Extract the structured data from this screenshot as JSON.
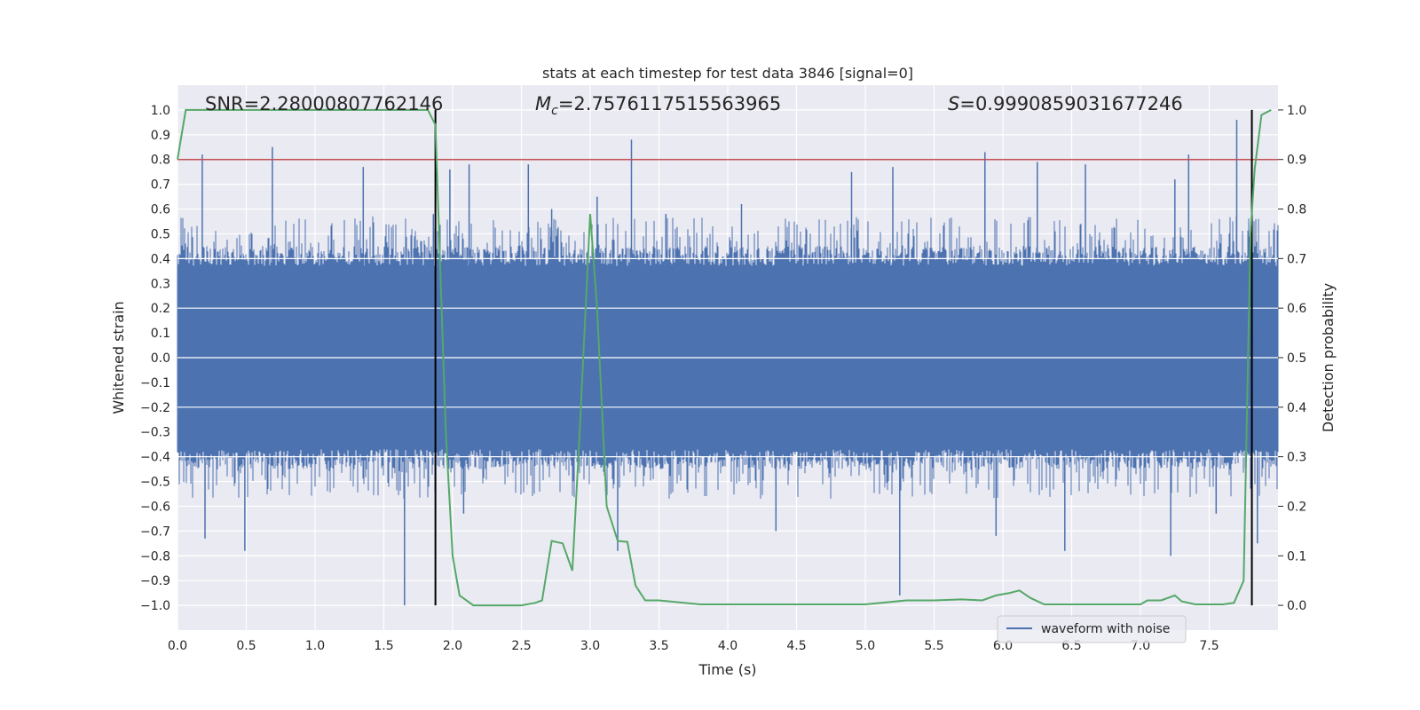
{
  "chart_data": {
    "type": "line",
    "title": "stats at each timestep for test data 3846 [signal=0]",
    "xlabel": "Time (s)",
    "ylabel": "Whitened strain",
    "y2label": "Detection probability",
    "xlim": [
      0.0,
      8.0
    ],
    "ylim": [
      -1.1,
      1.1
    ],
    "y2lim": [
      -0.05,
      1.05
    ],
    "xticks": [
      "0.0",
      "0.5",
      "1.0",
      "1.5",
      "2.0",
      "2.5",
      "3.0",
      "3.5",
      "4.0",
      "4.5",
      "5.0",
      "5.5",
      "6.0",
      "6.5",
      "7.0",
      "7.5"
    ],
    "yticks": [
      "1.0",
      "0.9",
      "0.8",
      "0.7",
      "0.6",
      "0.5",
      "0.4",
      "0.3",
      "0.2",
      "0.1",
      "0.0",
      "-0.1",
      "-0.2",
      "-0.3",
      "-0.4",
      "-0.5",
      "-0.6",
      "-0.7",
      "-0.8",
      "-0.9",
      "-1.0"
    ],
    "y2ticks": [
      "1.0",
      "0.9",
      "0.8",
      "0.7",
      "0.6",
      "0.5",
      "0.4",
      "0.3",
      "0.2",
      "0.1",
      "0.0"
    ],
    "annotations": {
      "snr": "SNR=2.28000807762146",
      "mc": "=2.7576117515563965",
      "mc_symbol": "M",
      "mc_sub": "c",
      "s": "=0.9990859031677246",
      "s_symbol": "S"
    },
    "legend": {
      "entry": "waveform with noise",
      "placement": "lower-right"
    },
    "threshold": 0.9,
    "vlines": [
      1.875,
      7.81
    ],
    "grid": true,
    "colors": {
      "waveform": "#4c72b0",
      "probability": "#55a868",
      "threshold": "#c44e52",
      "vline": "#000000",
      "plot_bg": "#eaeaf2",
      "grid": "#ffffff"
    },
    "waveform": {
      "series_name": "waveform with noise",
      "core_amplitude": 0.37,
      "spikes_up": [
        [
          0.18,
          0.82
        ],
        [
          0.69,
          0.85
        ],
        [
          1.35,
          0.77
        ],
        [
          1.86,
          0.58
        ],
        [
          1.98,
          0.76
        ],
        [
          2.12,
          0.78
        ],
        [
          2.55,
          0.78
        ],
        [
          2.72,
          0.6
        ],
        [
          3.05,
          0.65
        ],
        [
          3.3,
          0.88
        ],
        [
          3.55,
          0.58
        ],
        [
          4.1,
          0.62
        ],
        [
          4.9,
          0.75
        ],
        [
          5.2,
          0.77
        ],
        [
          5.87,
          0.83
        ],
        [
          6.25,
          0.79
        ],
        [
          6.6,
          0.78
        ],
        [
          7.25,
          0.72
        ],
        [
          7.35,
          0.82
        ],
        [
          7.7,
          0.96
        ]
      ],
      "spikes_down": [
        [
          0.2,
          -0.73
        ],
        [
          0.49,
          -0.78
        ],
        [
          1.65,
          -1.0
        ],
        [
          2.08,
          -0.63
        ],
        [
          3.2,
          -0.78
        ],
        [
          4.35,
          -0.7
        ],
        [
          5.25,
          -0.96
        ],
        [
          5.95,
          -0.72
        ],
        [
          6.45,
          -0.78
        ],
        [
          7.22,
          -0.8
        ],
        [
          7.55,
          -0.63
        ],
        [
          7.85,
          -0.75
        ]
      ]
    },
    "detection_probability": {
      "x": [
        0.0,
        0.06,
        1.5,
        1.82,
        1.875,
        1.95,
        2.0,
        2.05,
        2.15,
        2.3,
        2.5,
        2.6,
        2.65,
        2.72,
        2.8,
        2.87,
        2.92,
        3.0,
        3.05,
        3.12,
        3.2,
        3.27,
        3.33,
        3.4,
        3.5,
        3.8,
        4.0,
        4.5,
        5.0,
        5.3,
        5.5,
        5.7,
        5.85,
        5.95,
        6.05,
        6.12,
        6.2,
        6.3,
        7.0,
        7.05,
        7.15,
        7.25,
        7.3,
        7.4,
        7.6,
        7.68,
        7.75,
        7.8,
        7.83,
        7.88,
        7.95
      ],
      "y": [
        0.9,
        1.0,
        1.0,
        1.0,
        0.97,
        0.35,
        0.1,
        0.02,
        0.0,
        0.0,
        0.0,
        0.005,
        0.01,
        0.13,
        0.125,
        0.07,
        0.33,
        0.79,
        0.6,
        0.2,
        0.13,
        0.128,
        0.04,
        0.01,
        0.01,
        0.002,
        0.002,
        0.002,
        0.002,
        0.01,
        0.01,
        0.012,
        0.01,
        0.02,
        0.025,
        0.03,
        0.015,
        0.002,
        0.002,
        0.01,
        0.01,
        0.02,
        0.008,
        0.002,
        0.002,
        0.005,
        0.05,
        0.75,
        0.88,
        0.99,
        1.0
      ]
    }
  }
}
